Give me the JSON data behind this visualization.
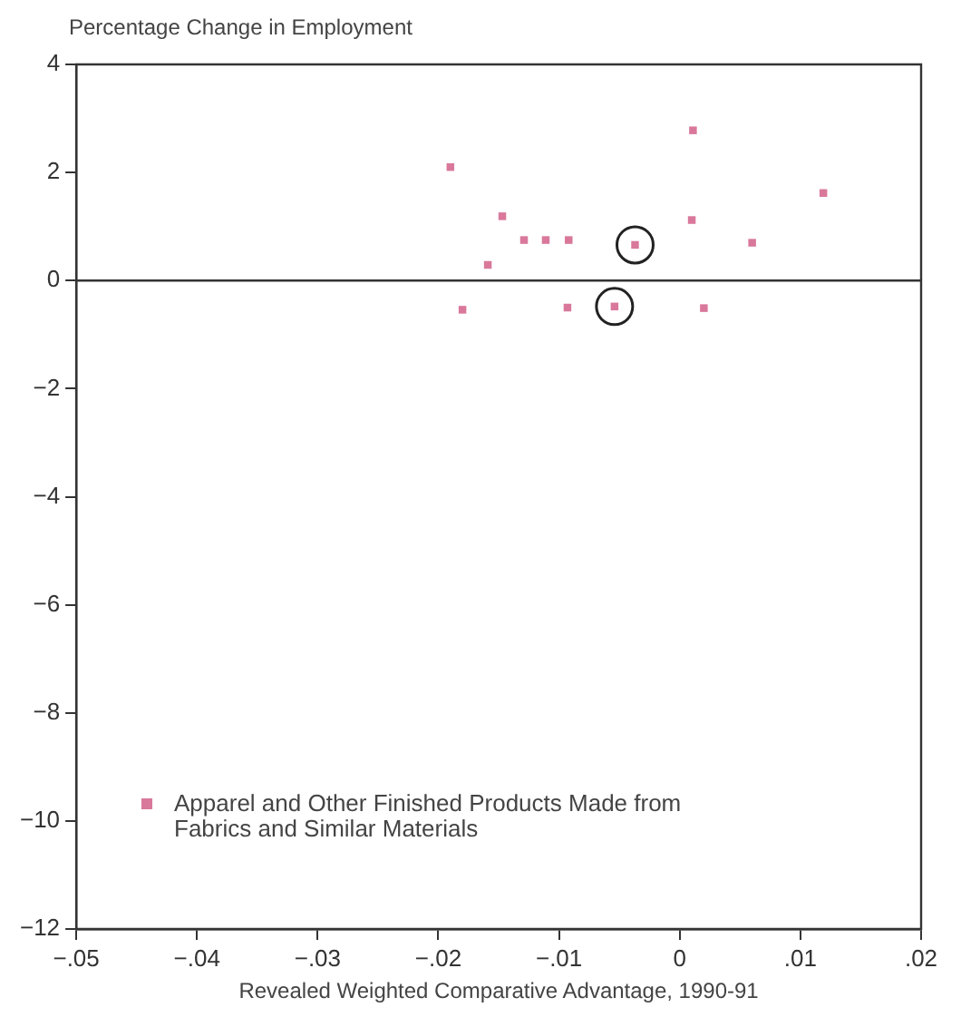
{
  "chart_data": {
    "type": "scatter",
    "ylabel": "Percentage Change in Employment",
    "xlabel": "Revealed Weighted Comparative Advantage, 1990-91",
    "xlim": [
      -0.05,
      0.02
    ],
    "xticks": [
      {
        "value": -0.05,
        "label": "−.05"
      },
      {
        "value": -0.04,
        "label": "−.04"
      },
      {
        "value": -0.03,
        "label": "−.03"
      },
      {
        "value": -0.02,
        "label": "−.02"
      },
      {
        "value": -0.01,
        "label": "−.01"
      },
      0,
      {
        "value": 0.01,
        "label": ".01"
      },
      {
        "value": 0.02,
        "label": ".02"
      }
    ],
    "ylim": [
      -12,
      4
    ],
    "yticks": [
      {
        "value": -12,
        "label": "−12"
      },
      {
        "value": -10,
        "label": "−10"
      },
      {
        "value": -8,
        "label": "−8"
      },
      {
        "value": -6,
        "label": "−6"
      },
      {
        "value": -4,
        "label": "−4"
      },
      {
        "value": -2,
        "label": "−2"
      },
      0,
      2,
      4
    ],
    "grid": false,
    "legend": "bottom left",
    "ref_lines": [
      {
        "axis": "y",
        "value": 0,
        "color": "#333333"
      }
    ],
    "series": [
      {
        "name": "Apparel and Other Finished Products Made from Fabrics and Similar Materials",
        "color": "#d9789b",
        "marker": "square",
        "x": [
          -0.019,
          0.0011,
          0.0119,
          -0.0147,
          0.001,
          -0.0129,
          -0.0111,
          -0.0092,
          -0.0037,
          0.006,
          -0.0159,
          -0.018,
          -0.0093,
          -0.0054,
          0.002
        ],
        "values": [
          2.1,
          2.78,
          1.62,
          1.19,
          1.12,
          0.75,
          0.75,
          0.75,
          0.66,
          0.7,
          0.29,
          -0.54,
          -0.5,
          -0.48,
          -0.51
        ]
      },
      {
        "color": "#222222",
        "marker": "circle",
        "x": [
          -0.0037,
          -0.0054
        ],
        "values": [
          0.66,
          -0.48
        ]
      }
    ]
  }
}
